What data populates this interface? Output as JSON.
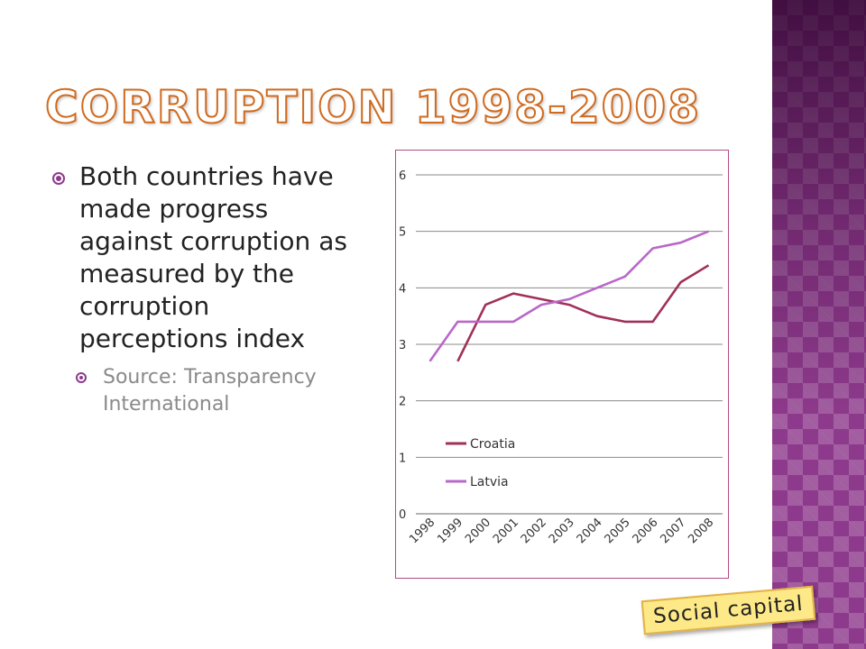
{
  "slide": {
    "title": "CORRUPTION 1998-2008",
    "bullet_main": "Both countries have made progress against corruption as measured by the corruption perceptions index",
    "bullet_sub": "Source: Transparency International",
    "tag": "Social capital",
    "accent_color": "#8e3a8c",
    "title_color": "#d06a1e"
  },
  "chart_data": {
    "type": "line",
    "categories": [
      "1998",
      "1999",
      "2000",
      "2001",
      "2002",
      "2003",
      "2004",
      "2005",
      "2006",
      "2007",
      "2008"
    ],
    "series": [
      {
        "name": "Croatia",
        "color": "#a0305a",
        "values": [
          null,
          2.7,
          3.7,
          3.9,
          3.8,
          3.7,
          3.5,
          3.4,
          3.4,
          4.1,
          4.4
        ]
      },
      {
        "name": "Latvia",
        "color": "#b868c8",
        "values": [
          2.7,
          3.4,
          3.4,
          3.4,
          3.7,
          3.8,
          4.0,
          4.2,
          4.7,
          4.8,
          5.0
        ]
      }
    ],
    "ylim": [
      0,
      6
    ],
    "yticks": [
      0,
      1,
      2,
      3,
      4,
      5,
      6
    ],
    "grid": true,
    "legend_position": "lower-left inside plot"
  }
}
